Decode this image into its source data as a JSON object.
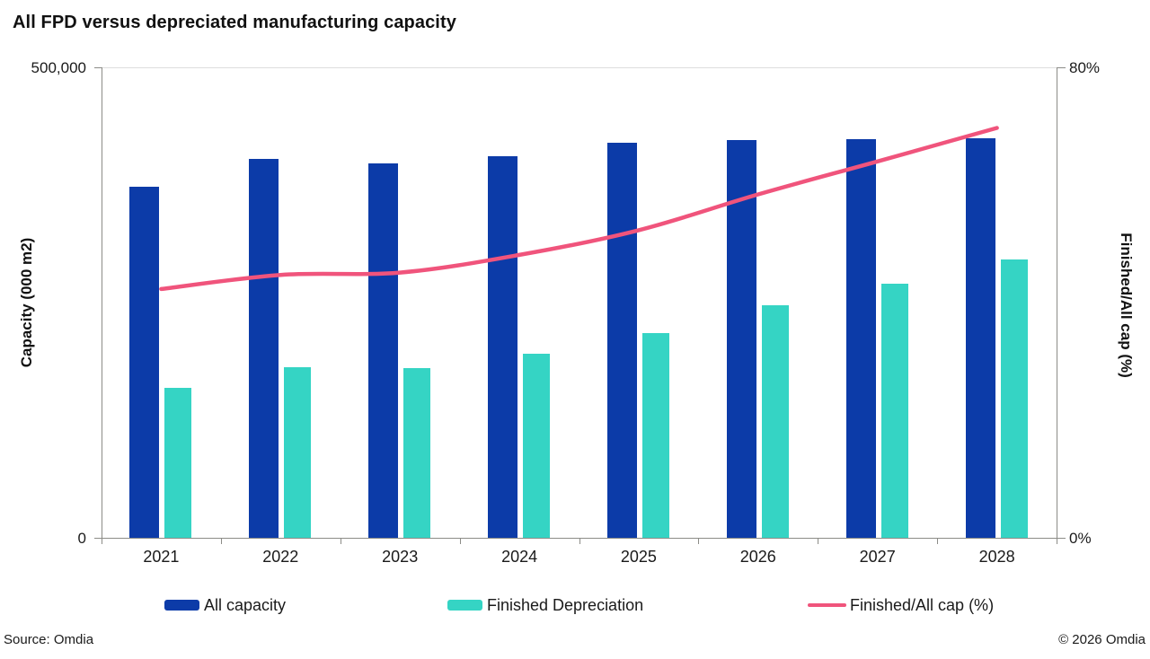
{
  "title": "All FPD versus depreciated manufacturing capacity",
  "axes": {
    "left": {
      "title": "Capacity (000 m2)",
      "max_label": "500,000",
      "min_label": "0"
    },
    "right": {
      "title": "Finished/All cap (%)",
      "max_label": "80%",
      "min_label": "0%"
    }
  },
  "footer": {
    "source": "Source: Omdia",
    "copyright": "© 2026 Omdia"
  },
  "colors": {
    "all_capacity_blue": "#0c3ba8",
    "finished_depreciation_teal": "#35d4c4",
    "ratio_line_pink": "#f0547c",
    "axis_gray": "#8c8c87",
    "gridline_gray": "#dddddd"
  },
  "chart_data": {
    "type": "bar",
    "subtype": "grouped bars with secondary-axis line",
    "title": "All FPD versus depreciated manufacturing capacity",
    "categories": [
      "2021",
      "2022",
      "2023",
      "2024",
      "2025",
      "2026",
      "2027",
      "2028"
    ],
    "series": [
      {
        "name": "All capacity",
        "type": "bar",
        "axis": "left",
        "color": "#0c3ba8",
        "values": [
          373000,
          403000,
          398000,
          406000,
          420000,
          423000,
          424000,
          425000
        ]
      },
      {
        "name": "Finished Depreciation",
        "type": "bar",
        "axis": "left",
        "color": "#35d4c4",
        "values": [
          159000,
          181000,
          180000,
          196000,
          218000,
          247000,
          270000,
          296000
        ]
      },
      {
        "name": "Finished/All cap (%)",
        "type": "line",
        "axis": "right",
        "color": "#f0547c",
        "values": [
          42.3,
          44.7,
          45.1,
          48.1,
          52.3,
          58.4,
          64.0,
          69.7
        ]
      }
    ],
    "xlabel": "",
    "ylabel": "Capacity (000 m2)",
    "y2label": "Finished/All cap (%)",
    "ylim": [
      0,
      500000
    ],
    "y2lim": [
      0,
      80
    ],
    "grid": "top boundary line only",
    "legend_position": "bottom"
  }
}
